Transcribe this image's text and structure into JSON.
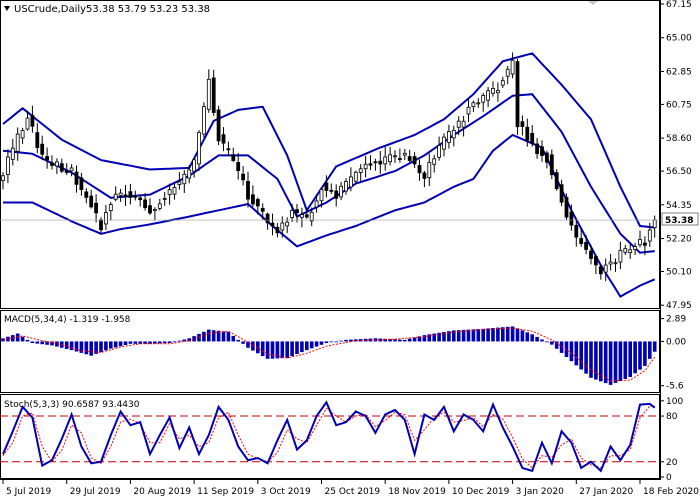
{
  "header": {
    "symbol_timeframe": "USCrude,Daily",
    "ohlc": "53.38 53.79 53.23 53.38"
  },
  "panels": {
    "macd_label": "MACD(5,34,4) -1.319 -1.958",
    "stoch_label": "Stoch(5,3,3) 90.6587 93.4430"
  },
  "last_price_label": "53.38",
  "colors": {
    "background": "#ffffff",
    "candle": "#000000",
    "bollinger": "#0000b4",
    "macd_hist": "#0000b4",
    "macd_signal": "#ff0000",
    "stoch_main": "#0000b4",
    "stoch_signal": "#ff0000",
    "stoch_levels": "#c00000",
    "grid_line": "#000000"
  },
  "chart_data": [
    {
      "type": "candlestick",
      "title": "USCrude,Daily",
      "overlay": "Bollinger Bands",
      "ylim": [
        47.9,
        67.15
      ],
      "y_ticks": [
        {
          "value": 67.15,
          "label": "67.15"
        },
        {
          "value": 65.0,
          "label": "65.00"
        },
        {
          "value": 62.85,
          "label": "62.85"
        },
        {
          "value": 60.75,
          "label": "60.75"
        },
        {
          "value": 58.6,
          "label": "58.60"
        },
        {
          "value": 56.5,
          "label": "56.50"
        },
        {
          "value": 54.35,
          "label": "54.35"
        },
        {
          "value": 52.2,
          "label": "52.20"
        },
        {
          "value": 50.1,
          "label": "50.10"
        },
        {
          "value": 47.95,
          "label": "47.95"
        }
      ],
      "last_close": 53.38,
      "x_labels": [
        "5 Jul 2019",
        "29 Jul 2019",
        "20 Aug 2019",
        "11 Sep 2019",
        "3 Oct 2019",
        "25 Oct 2019",
        "18 Nov 2019",
        "10 Dec 2019",
        "3 Jan 2020",
        "27 Jan 2020",
        "18 Feb 2020"
      ],
      "close_keypoints": [
        [
          0,
          56.5
        ],
        [
          5,
          60.1
        ],
        [
          8,
          57.3
        ],
        [
          14,
          56.5
        ],
        [
          17,
          54.8
        ],
        [
          20,
          53.0
        ],
        [
          23,
          55.2
        ],
        [
          26,
          55.1
        ],
        [
          30,
          54.0
        ],
        [
          33,
          55.0
        ],
        [
          36,
          55.8
        ],
        [
          39,
          57.1
        ],
        [
          42,
          62.4
        ],
        [
          44,
          58.6
        ],
        [
          47,
          57.2
        ],
        [
          50,
          55.0
        ],
        [
          53,
          53.7
        ],
        [
          56,
          52.8
        ],
        [
          59,
          53.8
        ],
        [
          62,
          53.5
        ],
        [
          65,
          55.5
        ],
        [
          68,
          55.0
        ],
        [
          71,
          56.0
        ],
        [
          74,
          56.8
        ],
        [
          77,
          57.0
        ],
        [
          80,
          57.4
        ],
        [
          83,
          57.3
        ],
        [
          86,
          56.1
        ],
        [
          89,
          58.1
        ],
        [
          92,
          59.1
        ],
        [
          95,
          60.4
        ],
        [
          98,
          61.2
        ],
        [
          101,
          61.9
        ],
        [
          104,
          63.3
        ],
        [
          105,
          59.6
        ],
        [
          108,
          58.2
        ],
        [
          111,
          57.3
        ],
        [
          113,
          55.6
        ],
        [
          116,
          52.8
        ],
        [
          119,
          51.6
        ],
        [
          122,
          50.1
        ],
        [
          125,
          50.9
        ],
        [
          128,
          51.7
        ],
        [
          131,
          52.0
        ],
        [
          133,
          53.38
        ]
      ],
      "bollinger": {
        "upper_keypoints": [
          [
            0,
            59.5
          ],
          [
            4,
            60.5
          ],
          [
            12,
            58.5
          ],
          [
            20,
            57.2
          ],
          [
            30,
            56.6
          ],
          [
            38,
            56.7
          ],
          [
            43,
            59.7
          ],
          [
            48,
            60.4
          ],
          [
            53,
            60.6
          ],
          [
            58,
            57.5
          ],
          [
            62,
            54.0
          ],
          [
            68,
            56.8
          ],
          [
            77,
            58.0
          ],
          [
            84,
            58.8
          ],
          [
            90,
            59.8
          ],
          [
            96,
            61.4
          ],
          [
            102,
            63.5
          ],
          [
            108,
            64.0
          ],
          [
            114,
            62.0
          ],
          [
            120,
            59.8
          ],
          [
            126,
            55.5
          ],
          [
            130,
            53.0
          ],
          [
            133,
            52.9
          ]
        ],
        "middle_keypoints": [
          [
            0,
            57.8
          ],
          [
            6,
            57.6
          ],
          [
            14,
            56.4
          ],
          [
            22,
            54.8
          ],
          [
            30,
            55.0
          ],
          [
            38,
            56.2
          ],
          [
            44,
            57.5
          ],
          [
            50,
            57.5
          ],
          [
            56,
            56.0
          ],
          [
            60,
            53.6
          ],
          [
            66,
            54.5
          ],
          [
            72,
            55.7
          ],
          [
            80,
            56.5
          ],
          [
            86,
            57.5
          ],
          [
            92,
            58.8
          ],
          [
            98,
            60.0
          ],
          [
            104,
            61.3
          ],
          [
            108,
            61.4
          ],
          [
            114,
            59.0
          ],
          [
            120,
            55.5
          ],
          [
            126,
            52.5
          ],
          [
            130,
            51.3
          ],
          [
            133,
            51.4
          ]
        ],
        "lower_keypoints": [
          [
            0,
            54.5
          ],
          [
            6,
            54.5
          ],
          [
            14,
            53.3
          ],
          [
            20,
            52.5
          ],
          [
            24,
            52.8
          ],
          [
            30,
            53.1
          ],
          [
            38,
            53.6
          ],
          [
            44,
            54.0
          ],
          [
            50,
            54.4
          ],
          [
            55,
            53.0
          ],
          [
            60,
            51.7
          ],
          [
            66,
            52.4
          ],
          [
            72,
            53.0
          ],
          [
            80,
            54.0
          ],
          [
            86,
            54.5
          ],
          [
            92,
            55.5
          ],
          [
            96,
            56.0
          ],
          [
            100,
            57.8
          ],
          [
            104,
            58.8
          ],
          [
            110,
            58.0
          ],
          [
            116,
            54.0
          ],
          [
            122,
            50.5
          ],
          [
            126,
            48.5
          ],
          [
            130,
            49.2
          ],
          [
            133,
            49.6
          ]
        ]
      }
    },
    {
      "type": "bar",
      "title": "MACD(5,34,4)",
      "values_text": "-1.319 -1.958",
      "ylim": [
        -6.4,
        3.6
      ],
      "y_ticks": [
        {
          "value": 2.89,
          "label": "2.89"
        },
        {
          "value": 0.0,
          "label": "0.00"
        },
        {
          "value": -5.6,
          "label": "-5.6"
        }
      ],
      "histogram_keypoints": [
        [
          0,
          0.4
        ],
        [
          3,
          1.0
        ],
        [
          6,
          -0.2
        ],
        [
          10,
          -0.5
        ],
        [
          14,
          -1.1
        ],
        [
          18,
          -1.8
        ],
        [
          22,
          -0.9
        ],
        [
          26,
          -0.3
        ],
        [
          30,
          -0.3
        ],
        [
          34,
          -0.2
        ],
        [
          38,
          0.4
        ],
        [
          42,
          1.5
        ],
        [
          46,
          1.2
        ],
        [
          50,
          -0.8
        ],
        [
          54,
          -2.2
        ],
        [
          58,
          -2.1
        ],
        [
          62,
          -1.1
        ],
        [
          66,
          -0.2
        ],
        [
          70,
          0.2
        ],
        [
          76,
          0.4
        ],
        [
          82,
          0.2
        ],
        [
          86,
          0.8
        ],
        [
          92,
          1.4
        ],
        [
          98,
          1.6
        ],
        [
          104,
          1.9
        ],
        [
          108,
          0.9
        ],
        [
          112,
          -0.4
        ],
        [
          116,
          -2.5
        ],
        [
          120,
          -4.6
        ],
        [
          124,
          -5.5
        ],
        [
          128,
          -4.5
        ],
        [
          131,
          -3.1
        ],
        [
          133,
          -1.3
        ]
      ],
      "signal_keypoints": [
        [
          0,
          0.2
        ],
        [
          4,
          0.7
        ],
        [
          8,
          0.1
        ],
        [
          12,
          -0.4
        ],
        [
          16,
          -1.2
        ],
        [
          20,
          -1.4
        ],
        [
          24,
          -0.7
        ],
        [
          28,
          -0.3
        ],
        [
          34,
          -0.3
        ],
        [
          38,
          0.1
        ],
        [
          42,
          1.0
        ],
        [
          46,
          1.3
        ],
        [
          50,
          -0.1
        ],
        [
          54,
          -1.6
        ],
        [
          58,
          -2.1
        ],
        [
          62,
          -1.5
        ],
        [
          66,
          -0.6
        ],
        [
          72,
          0.1
        ],
        [
          80,
          0.3
        ],
        [
          86,
          0.6
        ],
        [
          92,
          1.2
        ],
        [
          98,
          1.5
        ],
        [
          104,
          1.7
        ],
        [
          108,
          1.3
        ],
        [
          112,
          0.2
        ],
        [
          116,
          -1.5
        ],
        [
          120,
          -3.6
        ],
        [
          124,
          -5.0
        ],
        [
          128,
          -4.9
        ],
        [
          131,
          -3.7
        ],
        [
          133,
          -2.0
        ]
      ]
    },
    {
      "type": "line",
      "title": "Stoch(5,3,3)",
      "values_text": "90.6587 93.4430",
      "ylim": [
        0,
        105
      ],
      "y_ticks": [
        {
          "value": 100,
          "label": "100"
        },
        {
          "value": 80,
          "label": "80"
        },
        {
          "value": 20,
          "label": "20"
        },
        {
          "value": 0,
          "label": "0"
        }
      ],
      "levels": [
        80,
        20
      ],
      "main_keypoints": [
        [
          0,
          30
        ],
        [
          2,
          60
        ],
        [
          4,
          92
        ],
        [
          6,
          78
        ],
        [
          8,
          15
        ],
        [
          10,
          22
        ],
        [
          12,
          50
        ],
        [
          14,
          82
        ],
        [
          16,
          40
        ],
        [
          18,
          18
        ],
        [
          20,
          20
        ],
        [
          22,
          55
        ],
        [
          24,
          86
        ],
        [
          26,
          68
        ],
        [
          28,
          72
        ],
        [
          30,
          30
        ],
        [
          32,
          55
        ],
        [
          34,
          78
        ],
        [
          36,
          38
        ],
        [
          38,
          65
        ],
        [
          40,
          30
        ],
        [
          42,
          55
        ],
        [
          44,
          92
        ],
        [
          46,
          75
        ],
        [
          48,
          40
        ],
        [
          50,
          22
        ],
        [
          52,
          25
        ],
        [
          54,
          18
        ],
        [
          56,
          48
        ],
        [
          58,
          75
        ],
        [
          60,
          36
        ],
        [
          62,
          48
        ],
        [
          64,
          80
        ],
        [
          66,
          98
        ],
        [
          68,
          68
        ],
        [
          70,
          72
        ],
        [
          72,
          86
        ],
        [
          74,
          80
        ],
        [
          76,
          58
        ],
        [
          78,
          82
        ],
        [
          80,
          88
        ],
        [
          82,
          75
        ],
        [
          84,
          30
        ],
        [
          86,
          82
        ],
        [
          88,
          75
        ],
        [
          90,
          92
        ],
        [
          92,
          60
        ],
        [
          94,
          82
        ],
        [
          96,
          75
        ],
        [
          98,
          60
        ],
        [
          100,
          95
        ],
        [
          102,
          65
        ],
        [
          104,
          40
        ],
        [
          106,
          12
        ],
        [
          108,
          8
        ],
        [
          110,
          45
        ],
        [
          112,
          18
        ],
        [
          114,
          60
        ],
        [
          116,
          45
        ],
        [
          118,
          12
        ],
        [
          120,
          20
        ],
        [
          122,
          8
        ],
        [
          124,
          40
        ],
        [
          126,
          22
        ],
        [
          128,
          42
        ],
        [
          130,
          95
        ],
        [
          132,
          96
        ],
        [
          133,
          91
        ]
      ],
      "signal_keypoints": [
        [
          0,
          28
        ],
        [
          2,
          45
        ],
        [
          4,
          80
        ],
        [
          6,
          84
        ],
        [
          8,
          40
        ],
        [
          10,
          20
        ],
        [
          12,
          35
        ],
        [
          14,
          68
        ],
        [
          16,
          58
        ],
        [
          18,
          25
        ],
        [
          20,
          18
        ],
        [
          22,
          40
        ],
        [
          24,
          72
        ],
        [
          26,
          76
        ],
        [
          28,
          70
        ],
        [
          30,
          45
        ],
        [
          32,
          45
        ],
        [
          34,
          70
        ],
        [
          36,
          50
        ],
        [
          38,
          55
        ],
        [
          40,
          40
        ],
        [
          42,
          45
        ],
        [
          44,
          78
        ],
        [
          46,
          85
        ],
        [
          48,
          55
        ],
        [
          50,
          30
        ],
        [
          52,
          24
        ],
        [
          54,
          20
        ],
        [
          56,
          32
        ],
        [
          58,
          62
        ],
        [
          60,
          50
        ],
        [
          62,
          45
        ],
        [
          64,
          68
        ],
        [
          66,
          90
        ],
        [
          68,
          80
        ],
        [
          70,
          72
        ],
        [
          72,
          80
        ],
        [
          74,
          82
        ],
        [
          76,
          66
        ],
        [
          78,
          74
        ],
        [
          80,
          85
        ],
        [
          82,
          82
        ],
        [
          84,
          48
        ],
        [
          86,
          62
        ],
        [
          88,
          78
        ],
        [
          90,
          85
        ],
        [
          92,
          72
        ],
        [
          94,
          74
        ],
        [
          96,
          78
        ],
        [
          98,
          66
        ],
        [
          100,
          82
        ],
        [
          102,
          76
        ],
        [
          104,
          52
        ],
        [
          106,
          24
        ],
        [
          108,
          12
        ],
        [
          110,
          28
        ],
        [
          112,
          26
        ],
        [
          114,
          42
        ],
        [
          116,
          50
        ],
        [
          118,
          25
        ],
        [
          120,
          16
        ],
        [
          122,
          12
        ],
        [
          124,
          28
        ],
        [
          126,
          28
        ],
        [
          128,
          36
        ],
        [
          130,
          78
        ],
        [
          132,
          93
        ],
        [
          133,
          93
        ]
      ]
    }
  ]
}
